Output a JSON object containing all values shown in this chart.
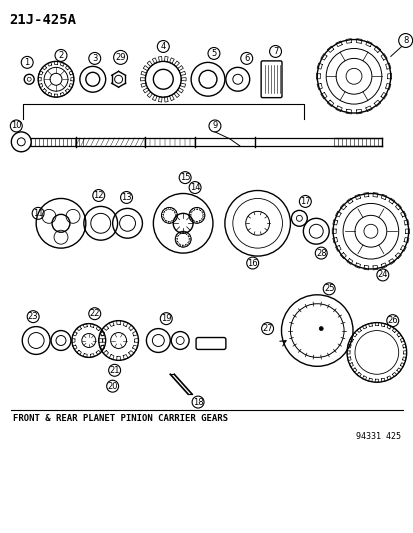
{
  "title": "21J-425A",
  "subtitle": "FRONT & REAR PLANET PINION CARRIER GEARS",
  "ref_number": "94331 425",
  "bg_color": "#ffffff",
  "line_color": "#000000",
  "fig_width": 4.14,
  "fig_height": 5.33,
  "dpi": 100
}
